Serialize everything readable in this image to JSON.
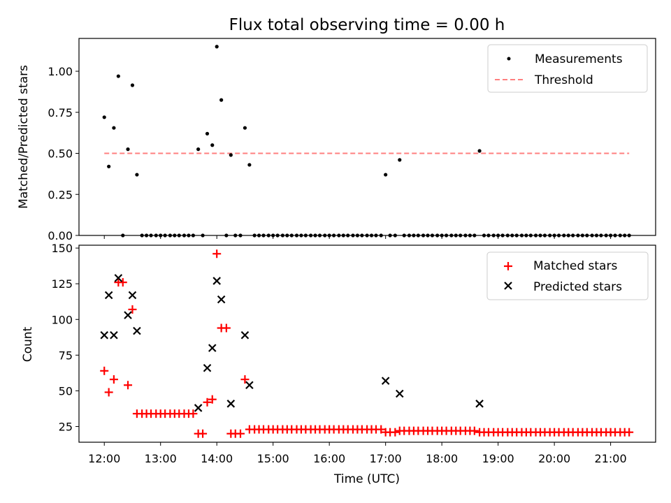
{
  "chart_data": {
    "title": "Flux total observing time = 0.00 h",
    "xlabel": "Time (UTC)",
    "xlim_hours": [
      11.55,
      21.8
    ],
    "xticks": [
      {
        "value": 12,
        "label": "12:00"
      },
      {
        "value": 13,
        "label": "13:00"
      },
      {
        "value": 14,
        "label": "14:00"
      },
      {
        "value": 15,
        "label": "15:00"
      },
      {
        "value": 16,
        "label": "16:00"
      },
      {
        "value": 17,
        "label": "17:00"
      },
      {
        "value": 18,
        "label": "18:00"
      },
      {
        "value": 19,
        "label": "19:00"
      },
      {
        "value": 20,
        "label": "20:00"
      },
      {
        "value": 21,
        "label": "21:00"
      }
    ],
    "panels": [
      {
        "type": "scatter",
        "ylabel": "Matched/Predicted stars",
        "ylim": [
          0,
          1.2
        ],
        "yticks": [
          {
            "value": 0,
            "label": "0.00"
          },
          {
            "value": 0.25,
            "label": "0.25"
          },
          {
            "value": 0.5,
            "label": "0.50"
          },
          {
            "value": 0.75,
            "label": "0.75"
          },
          {
            "value": 1.0,
            "label": "1.00"
          }
        ],
        "legend": [
          "Measurements",
          "Threshold"
        ],
        "threshold": {
          "value": 0.5,
          "x_range": [
            12.0,
            21.33
          ],
          "color": "#ff7f7f"
        },
        "measurements": {
          "color": "#000000",
          "x": [
            12.0,
            12.08,
            12.17,
            12.25,
            12.33,
            12.42,
            12.5,
            12.58,
            12.67,
            12.75,
            12.83,
            12.92,
            13.0,
            13.08,
            13.17,
            13.25,
            13.33,
            13.42,
            13.5,
            13.58,
            13.67,
            13.75,
            13.83,
            13.92,
            14.0,
            14.08,
            14.17,
            14.25,
            14.33,
            14.42,
            14.5,
            14.58,
            14.67,
            14.75,
            14.83,
            14.92,
            15.0,
            15.08,
            15.17,
            15.25,
            15.33,
            15.42,
            15.5,
            15.58,
            15.67,
            15.75,
            15.83,
            15.92,
            16.0,
            16.08,
            16.17,
            16.25,
            16.33,
            16.42,
            16.5,
            16.58,
            16.67,
            16.75,
            16.83,
            16.92,
            17.0,
            17.08,
            17.17,
            17.25,
            17.33,
            17.42,
            17.5,
            17.58,
            17.67,
            17.75,
            17.83,
            17.92,
            18.0,
            18.08,
            18.17,
            18.25,
            18.33,
            18.42,
            18.5,
            18.58,
            18.67,
            18.75,
            18.83,
            18.92,
            19.0,
            19.08,
            19.17,
            19.25,
            19.33,
            19.42,
            19.5,
            19.58,
            19.67,
            19.75,
            19.83,
            19.92,
            20.0,
            20.08,
            20.17,
            20.25,
            20.33,
            20.42,
            20.5,
            20.58,
            20.67,
            20.75,
            20.83,
            20.92,
            21.0,
            21.08,
            21.17,
            21.25,
            21.33
          ],
          "y": [
            0.72,
            0.42,
            0.655,
            0.97,
            0,
            0.525,
            0.915,
            0.37,
            0,
            0,
            0,
            0,
            0,
            0,
            0,
            0,
            0,
            0,
            0,
            0,
            0.525,
            0,
            0.62,
            0.55,
            1.15,
            0.825,
            0,
            0.49,
            0,
            0,
            0.655,
            0.43,
            0,
            0,
            0,
            0,
            0,
            0,
            0,
            0,
            0,
            0,
            0,
            0,
            0,
            0,
            0,
            0,
            0,
            0,
            0,
            0,
            0,
            0,
            0,
            0,
            0,
            0,
            0,
            0,
            0.37,
            0,
            0,
            0.46,
            0,
            0,
            0,
            0,
            0,
            0,
            0,
            0,
            0,
            0,
            0,
            0,
            0,
            0,
            0,
            0,
            0.515,
            0,
            0,
            0,
            0,
            0,
            0,
            0,
            0,
            0,
            0,
            0,
            0,
            0,
            0,
            0,
            0,
            0,
            0,
            0,
            0,
            0,
            0,
            0,
            0,
            0,
            0,
            0,
            0,
            0,
            0,
            0,
            0
          ]
        }
      },
      {
        "type": "scatter",
        "ylabel": "Count",
        "ylim": [
          14,
          152
        ],
        "yticks": [
          {
            "value": 25,
            "label": "25"
          },
          {
            "value": 50,
            "label": "50"
          },
          {
            "value": 75,
            "label": "75"
          },
          {
            "value": 100,
            "label": "100"
          },
          {
            "value": 125,
            "label": "125"
          },
          {
            "value": 150,
            "label": "150"
          }
        ],
        "legend": [
          "Matched stars",
          "Predicted stars"
        ],
        "matched": {
          "color": "#ff0000",
          "x": [
            12.0,
            12.08,
            12.17,
            12.25,
            12.33,
            12.42,
            12.5,
            12.58,
            12.67,
            12.75,
            12.83,
            12.92,
            13.0,
            13.08,
            13.17,
            13.25,
            13.33,
            13.42,
            13.5,
            13.58,
            13.67,
            13.75,
            13.83,
            13.92,
            14.0,
            14.08,
            14.17,
            14.25,
            14.33,
            14.42,
            14.5,
            14.58,
            14.67,
            14.75,
            14.83,
            14.92,
            15.0,
            15.08,
            15.17,
            15.25,
            15.33,
            15.42,
            15.5,
            15.58,
            15.67,
            15.75,
            15.83,
            15.92,
            16.0,
            16.08,
            16.17,
            16.25,
            16.33,
            16.42,
            16.5,
            16.58,
            16.67,
            16.75,
            16.83,
            16.92,
            17.0,
            17.08,
            17.17,
            17.25,
            17.33,
            17.42,
            17.5,
            17.58,
            17.67,
            17.75,
            17.83,
            17.92,
            18.0,
            18.08,
            18.17,
            18.25,
            18.33,
            18.42,
            18.5,
            18.58,
            18.67,
            18.75,
            18.83,
            18.92,
            19.0,
            19.08,
            19.17,
            19.25,
            19.33,
            19.42,
            19.5,
            19.58,
            19.67,
            19.75,
            19.83,
            19.92,
            20.0,
            20.08,
            20.17,
            20.25,
            20.33,
            20.42,
            20.5,
            20.58,
            20.67,
            20.75,
            20.83,
            20.92,
            21.0,
            21.08,
            21.17,
            21.25,
            21.33
          ],
          "y": [
            64,
            49,
            58,
            126,
            126,
            54,
            107,
            34,
            34,
            34,
            34,
            34,
            34,
            34,
            34,
            34,
            34,
            34,
            34,
            34,
            20,
            20,
            42,
            44,
            146,
            94,
            94,
            20,
            20,
            20,
            58,
            23,
            23,
            23,
            23,
            23,
            23,
            23,
            23,
            23,
            23,
            23,
            23,
            23,
            23,
            23,
            23,
            23,
            23,
            23,
            23,
            23,
            23,
            23,
            23,
            23,
            23,
            23,
            23,
            23,
            21,
            21,
            21,
            22,
            22,
            22,
            22,
            22,
            22,
            22,
            22,
            22,
            22,
            22,
            22,
            22,
            22,
            22,
            22,
            22,
            21,
            21,
            21,
            21,
            21,
            21,
            21,
            21,
            21,
            21,
            21,
            21,
            21,
            21,
            21,
            21,
            21,
            21,
            21,
            21,
            21,
            21,
            21,
            21,
            21,
            21,
            21,
            21,
            21,
            21,
            21,
            21,
            21
          ]
        },
        "predicted": {
          "color": "#000000",
          "x": [
            12.0,
            12.08,
            12.17,
            12.25,
            12.42,
            12.5,
            12.58,
            13.67,
            13.83,
            13.92,
            14.0,
            14.08,
            14.25,
            14.5,
            14.58,
            17.0,
            17.25,
            18.67
          ],
          "y": [
            89,
            117,
            89,
            129,
            103,
            117,
            92,
            38,
            66,
            80,
            127,
            114,
            41,
            89,
            54,
            57,
            48,
            41
          ]
        }
      }
    ]
  }
}
